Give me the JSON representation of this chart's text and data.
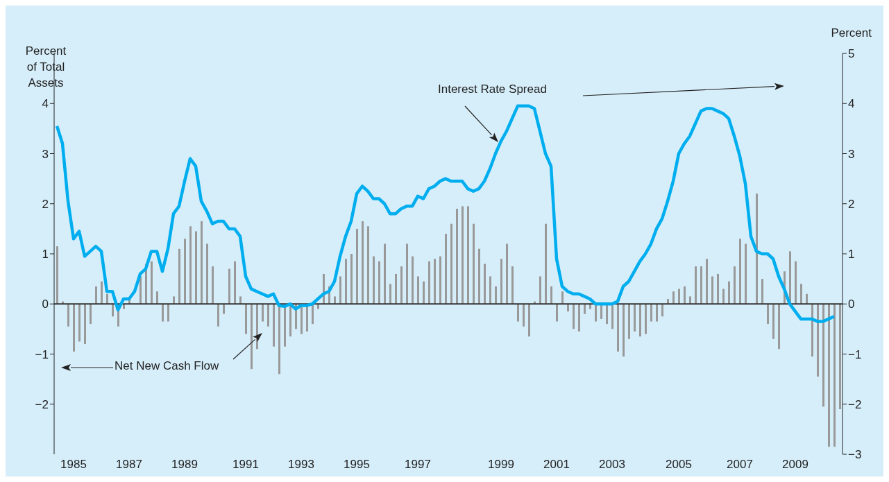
{
  "chart_data": {
    "type": "bar",
    "ylabel": "Percent of Total Assets",
    "y2label": "Percent",
    "categories": [
      null,
      null,
      null,
      "1985",
      null,
      null,
      null,
      null,
      null,
      null,
      null,
      null,
      null,
      "1987",
      null,
      null,
      null,
      null,
      null,
      null,
      null,
      null,
      null,
      "1989",
      null,
      null,
      null,
      null,
      null,
      null,
      null,
      null,
      null,
      null,
      "1991",
      null,
      null,
      null,
      null,
      null,
      null,
      null,
      null,
      null,
      "1993",
      null,
      null,
      null,
      null,
      null,
      null,
      null,
      null,
      null,
      "1995",
      null,
      null,
      null,
      null,
      null,
      null,
      null,
      null,
      null,
      null,
      "1997",
      null,
      null,
      null,
      null,
      null,
      null,
      null,
      null,
      null,
      null,
      null,
      null,
      null,
      null,
      "1999",
      null,
      null,
      null,
      null,
      null,
      null,
      null,
      null,
      null,
      "2001",
      null,
      null,
      null,
      null,
      null,
      null,
      null,
      null,
      null,
      "2003",
      null,
      null,
      null,
      null,
      null,
      null,
      null,
      null,
      null,
      null,
      null,
      "2005",
      null,
      null,
      null,
      null,
      null,
      null,
      null,
      null,
      null,
      null,
      "2007",
      null,
      null,
      null,
      null,
      null,
      null,
      null,
      null,
      null,
      "2009",
      null,
      null,
      null,
      null,
      null,
      null,
      null,
      null
    ],
    "series": [
      {
        "name": "Net New Cash Flow",
        "color": "#999999",
        "values": [
          1.15,
          0.05,
          -0.45,
          -0.95,
          -0.75,
          -0.8,
          -0.4,
          0.35,
          0.45,
          0.2,
          -0.25,
          -0.45,
          -0.1,
          0.1,
          null,
          0.55,
          0.8,
          0.85,
          0.25,
          -0.35,
          -0.35,
          0.15,
          1.1,
          1.3,
          1.55,
          1.45,
          1.65,
          1.2,
          0.75,
          -0.45,
          -0.2,
          0.7,
          0.85,
          0.15,
          -0.6,
          -1.3,
          -0.9,
          -0.35,
          -0.45,
          -0.85,
          -1.4,
          -0.85,
          -0.65,
          -0.5,
          -0.6,
          -0.55,
          -0.4,
          -0.1,
          0.6,
          0.35,
          0.15,
          0.55,
          0.9,
          1.0,
          1.5,
          1.65,
          1.55,
          0.95,
          0.85,
          1.2,
          0.4,
          0.6,
          0.75,
          1.2,
          0.95,
          0.55,
          0.45,
          0.85,
          0.9,
          0.95,
          1.4,
          1.6,
          1.9,
          1.95,
          1.95,
          1.6,
          1.1,
          0.8,
          0.55,
          0.35,
          0.9,
          1.2,
          0.75,
          -0.35,
          -0.45,
          -0.65,
          0.05,
          0.55,
          1.6,
          0.35,
          -0.35,
          0.25,
          -0.15,
          -0.5,
          -0.55,
          -0.2,
          -0.1,
          -0.35,
          -0.3,
          -0.4,
          -0.5,
          -0.95,
          -1.05,
          -0.7,
          -0.55,
          -0.65,
          -0.6,
          -0.35,
          -0.35,
          -0.25,
          0.1,
          0.25,
          0.3,
          0.35,
          0.15,
          0.75,
          0.75,
          0.9,
          0.55,
          0.6,
          0.3,
          0.45,
          0.75,
          1.3,
          1.2,
          null,
          2.2,
          0.5,
          -0.4,
          -0.7,
          -0.9,
          0.65,
          1.05,
          0.85,
          0.4,
          0.2,
          -1.05,
          -1.45,
          -2.05,
          -2.85,
          -2.85,
          -2.1
        ]
      },
      {
        "name": "Interest Rate Spread",
        "type": "line",
        "axis": "y2",
        "color": "#00aeef",
        "values": [
          3.55,
          3.2,
          2.05,
          1.3,
          1.45,
          0.95,
          1.05,
          1.15,
          1.05,
          0.25,
          0.25,
          -0.12,
          0.1,
          0.1,
          0.25,
          0.6,
          0.7,
          1.05,
          1.05,
          0.65,
          1.1,
          1.8,
          1.95,
          2.45,
          2.9,
          2.75,
          2.05,
          1.85,
          1.6,
          1.65,
          1.65,
          1.5,
          1.5,
          1.35,
          0.55,
          0.3,
          0.25,
          0.2,
          0.15,
          0.2,
          -0.03,
          -0.05,
          0,
          -0.1,
          -0.03,
          -0.03,
          0,
          0.1,
          0.2,
          0.25,
          0.45,
          0.95,
          1.35,
          1.65,
          2.2,
          2.35,
          2.25,
          2.1,
          2.1,
          2.0,
          1.8,
          1.8,
          1.9,
          1.95,
          1.95,
          2.15,
          2.1,
          2.3,
          2.35,
          2.45,
          2.5,
          2.45,
          2.45,
          2.45,
          2.3,
          2.25,
          2.3,
          2.45,
          2.7,
          3.0,
          3.25,
          3.45,
          3.7,
          3.95,
          3.95,
          3.95,
          3.9,
          3.45,
          3.0,
          2.75,
          0.9,
          0.35,
          0.25,
          0.2,
          0.2,
          0.15,
          0.1,
          0,
          0,
          0,
          0,
          0.05,
          0.35,
          0.45,
          0.65,
          0.85,
          1.0,
          1.2,
          1.5,
          1.7,
          2.05,
          2.45,
          3.0,
          3.2,
          3.35,
          3.6,
          3.85,
          3.9,
          3.9,
          3.85,
          3.8,
          3.7,
          3.35,
          2.95,
          2.4,
          1.35,
          1.05,
          1.0,
          1.0,
          0.9,
          0.55,
          0.3,
          0,
          -0.15,
          -0.3,
          -0.3,
          -0.3,
          -0.35,
          -0.35,
          -0.3,
          -0.25,
          null
        ]
      }
    ],
    "ylim": [
      -3,
      5
    ],
    "yticks": [
      -2,
      -1,
      0,
      1,
      2,
      3,
      4
    ],
    "y2lim": [
      -3,
      5
    ],
    "y2ticks": [
      -3,
      -2,
      -1,
      0,
      1,
      2,
      3,
      4,
      5
    ],
    "marker": "none"
  }
}
